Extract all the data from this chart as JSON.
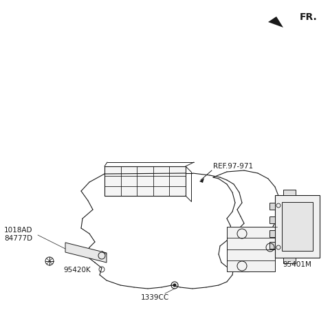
{
  "bg_color": "#ffffff",
  "line_color": "#1a1a1a",
  "fig_width": 4.8,
  "fig_height": 4.7,
  "dpi": 100,
  "fr_label": "FR.",
  "parts_labels": {
    "left_top": "1018AD\n84777D",
    "left_bracket": "95420K",
    "ref": "REF.97-971",
    "bottom": "1339CC",
    "right": "95401M"
  }
}
